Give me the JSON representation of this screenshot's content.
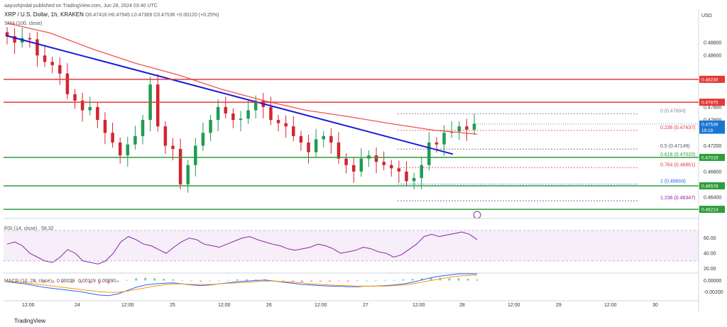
{
  "header": {
    "attribution": "aayushjindal published on TradingView.com, Jun 28, 2024 03:40 UTC",
    "symbol_line": "XRP / U.S. Dollar, 1h, KRAKEN",
    "ohlc": "O0.47416 H0.47545 L0.47369 C0.47536 +0.00120 (+0.25%)",
    "indicator": "SMA (100, close)",
    "currency": "USD",
    "footer_logo": "TradingView"
  },
  "colors": {
    "up": "#1f9b53",
    "down": "#d3242f",
    "trend": "#1a1ad6",
    "sma": "#ef5350",
    "resistance": "#e53935",
    "support": "#2e9d3a",
    "rsi": "#8e24aa",
    "macd": "#2962ff",
    "signal": "#ff9800"
  },
  "chart_data": [
    {
      "type": "line",
      "title": "XRP / U.S. Dollar, 1h, KRAKEN",
      "ylim": [
        0.4616,
        0.4902
      ],
      "y_ticks": [
        "0.48800",
        "0.48600",
        "0.48200",
        "0.47800",
        "0.47600",
        "0.47200",
        "0.47000",
        "0.46800",
        "0.46400"
      ],
      "x_ticks": [
        "12:00",
        "24",
        "12:00",
        "25",
        "12:00",
        "26",
        "12:00",
        "27",
        "12:00",
        "28",
        "12:00",
        "29",
        "12:00",
        "30"
      ],
      "close_series": [
        0.489,
        0.488,
        0.4887,
        0.4885,
        0.486,
        0.485,
        0.4845,
        0.4832,
        0.48,
        0.479,
        0.4775,
        0.478,
        0.476,
        0.474,
        0.4725,
        0.4705,
        0.4722,
        0.4735,
        0.476,
        0.4815,
        0.475,
        0.472,
        0.4715,
        0.466,
        0.469,
        0.472,
        0.474,
        0.476,
        0.478,
        0.477,
        0.476,
        0.4762,
        0.4775,
        0.479,
        0.478,
        0.476,
        0.4755,
        0.475,
        0.4735,
        0.4725,
        0.471,
        0.473,
        0.4735,
        0.4725,
        0.47,
        0.469,
        0.468,
        0.47,
        0.4705,
        0.4695,
        0.469,
        0.4685,
        0.468,
        0.4665,
        0.467,
        0.469,
        0.4725,
        0.4722,
        0.474,
        0.4742,
        0.475,
        0.4745,
        0.4754
      ],
      "sma_series": [
        0.491,
        0.4895,
        0.487,
        0.4848,
        0.483,
        0.4808,
        0.479,
        0.4775,
        0.4765,
        0.4754,
        0.4744,
        0.4738
      ],
      "trendline": [
        [
          0.4891,
          0
        ],
        [
          0.4707,
          1
        ]
      ],
      "horizontal_levels": [
        {
          "label": "0.48230",
          "value": 0.4823,
          "kind": "resistance"
        },
        {
          "label": "0.47875",
          "value": 0.47875,
          "kind": "resistance"
        },
        {
          "label": "0.47019",
          "value": 0.47019,
          "kind": "support"
        },
        {
          "label": "0.46578",
          "value": 0.46578,
          "kind": "support"
        },
        {
          "label": "0.46214",
          "value": 0.46214,
          "kind": "support"
        }
      ],
      "fibonacci": [
        {
          "label": "0 (0.47694)",
          "value": 0.47694,
          "color": "#888888"
        },
        {
          "label": "0.236 (0.47437)",
          "value": 0.47437,
          "color": "#e53935"
        },
        {
          "label": "0.5 (0.47149)",
          "value": 0.47149,
          "color": "#555555"
        },
        {
          "label": "0.618 (0.47020)",
          "value": 0.4702,
          "color": "#2e9d3a"
        },
        {
          "label": "0.764 (0.46861)",
          "value": 0.46861,
          "color": "#e53935"
        },
        {
          "label": "1 (0.46604)",
          "value": 0.46604,
          "color": "#2962ff"
        },
        {
          "label": "1.236 (0.46347)",
          "value": 0.46347,
          "color": "#8e24aa"
        }
      ],
      "price_tags": [
        {
          "label": "0.47536",
          "value": 0.47536
        },
        {
          "label": "19:18",
          "value": 0.47485
        }
      ]
    },
    {
      "type": "line",
      "title": "RSI (14, close)",
      "header_value": "58.32",
      "ylim": [
        15,
        82
      ],
      "y_ticks": [
        "60.00",
        "40.00",
        "20.00"
      ],
      "band": [
        30,
        70
      ],
      "values": [
        52,
        55,
        50,
        40,
        35,
        30,
        28,
        35,
        45,
        40,
        30,
        28,
        26,
        30,
        40,
        55,
        62,
        58,
        52,
        50,
        45,
        40,
        48,
        55,
        60,
        58,
        52,
        50,
        48,
        52,
        56,
        60,
        62,
        58,
        55,
        52,
        50,
        46,
        44,
        46,
        48,
        52,
        50,
        46,
        40,
        42,
        44,
        48,
        46,
        42,
        40,
        35,
        38,
        45,
        52,
        62,
        65,
        62,
        64,
        66,
        68,
        65,
        58
      ]
    },
    {
      "type": "line",
      "title": "MACD (12, 26, close)",
      "header_values": [
        "0.00029",
        "0.00119",
        "0.00090"
      ],
      "ylim": [
        -0.0031,
        0.0012
      ],
      "y_ticks": [
        "0.00000",
        "-0.00200"
      ],
      "macd": [
        -0.0002,
        -0.0004,
        -0.0006,
        -0.0009,
        -0.0012,
        -0.0014,
        -0.0016,
        -0.0018,
        -0.002,
        -0.0023,
        -0.0026,
        -0.0027,
        -0.0024,
        -0.0018,
        -0.0012,
        -0.0008,
        -0.0006,
        -0.0005,
        -0.0004,
        -0.0006,
        -0.0008,
        -0.0009,
        -0.0008,
        -0.0006,
        -0.0004,
        -0.0002,
        -0.0001,
        0.0,
        0.0001,
        -0.0001,
        -0.0003,
        -0.0005,
        -0.0007,
        -0.0008,
        -0.0009,
        -0.001,
        -0.001,
        -0.0011,
        -0.0011,
        -0.001,
        -0.001,
        -0.0009,
        -0.0008,
        -0.0006,
        -0.0003,
        0.0001,
        0.0005,
        0.0008,
        0.001,
        0.0012,
        0.0012,
        0.0012
      ],
      "signal": [
        -0.0001,
        -0.0002,
        -0.0004,
        -0.0006,
        -0.0008,
        -0.001,
        -0.0012,
        -0.0014,
        -0.0016,
        -0.0018,
        -0.002,
        -0.0021,
        -0.0021,
        -0.0019,
        -0.0016,
        -0.0013,
        -0.001,
        -0.0008,
        -0.0006,
        -0.0006,
        -0.0007,
        -0.0007,
        -0.0007,
        -0.0006,
        -0.0005,
        -0.0004,
        -0.0003,
        -0.0002,
        -0.0001,
        -0.0001,
        -0.0002,
        -0.0003,
        -0.0004,
        -0.0006,
        -0.0007,
        -0.0008,
        -0.0009,
        -0.0009,
        -0.001,
        -0.001,
        -0.001,
        -0.001,
        -0.0009,
        -0.0008,
        -0.0006,
        -0.0003,
        0.0,
        0.0003,
        0.0006,
        0.0008,
        0.0009,
        0.001
      ]
    }
  ]
}
